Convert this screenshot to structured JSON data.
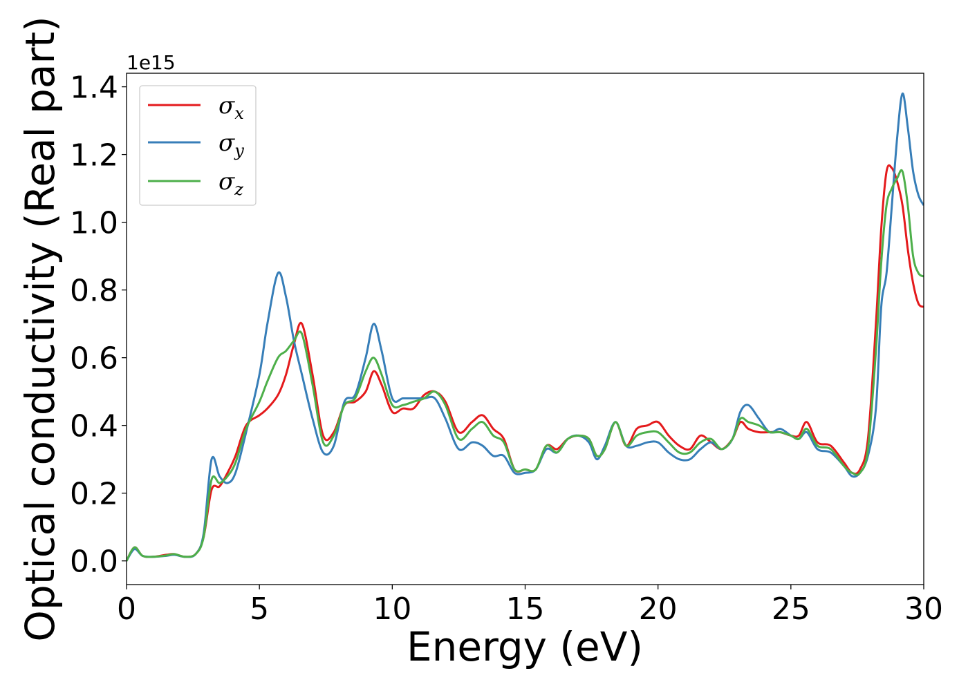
{
  "chart_data": {
    "type": "line",
    "title": "",
    "xlabel": "Energy (eV)",
    "ylabel": "Optical conductivity (Real part)",
    "y_offset_label": "1e15",
    "xlim": [
      0,
      30
    ],
    "ylim": [
      -0.07,
      1.44
    ],
    "x_ticks": [
      0,
      5,
      10,
      15,
      20,
      25,
      30
    ],
    "x_tick_labels": [
      "0",
      "5",
      "10",
      "15",
      "20",
      "25",
      "30"
    ],
    "y_ticks": [
      0.0,
      0.2,
      0.4,
      0.6,
      0.8,
      1.0,
      1.2,
      1.4
    ],
    "y_tick_labels": [
      "0.0",
      "0.2",
      "0.4",
      "0.6",
      "0.8",
      "1.0",
      "1.2",
      "1.4"
    ],
    "grid": false,
    "legend_position": "top-left",
    "x": [
      0,
      0.3,
      0.6,
      1.0,
      1.5,
      1.8,
      2.2,
      2.6,
      2.9,
      3.2,
      3.5,
      3.8,
      4.1,
      4.5,
      5.0,
      5.3,
      5.7,
      6.0,
      6.3,
      6.6,
      7.0,
      7.4,
      7.8,
      8.2,
      8.6,
      9.0,
      9.3,
      9.6,
      10.0,
      10.4,
      10.8,
      11.2,
      11.6,
      12.0,
      12.5,
      13.0,
      13.4,
      13.8,
      14.2,
      14.6,
      15.0,
      15.4,
      15.8,
      16.2,
      16.6,
      17.0,
      17.4,
      17.7,
      18.0,
      18.4,
      18.8,
      19.2,
      19.6,
      20.0,
      20.4,
      20.8,
      21.2,
      21.6,
      22.0,
      22.4,
      22.8,
      23.1,
      23.4,
      23.8,
      24.2,
      24.6,
      25.0,
      25.3,
      25.6,
      26.0,
      26.5,
      27.0,
      27.3,
      27.6,
      27.9,
      28.2,
      28.4,
      28.6,
      28.8,
      29.0,
      29.2,
      29.4,
      29.6,
      29.8,
      30.0
    ],
    "series": [
      {
        "name": "σx",
        "color": "#e41a1c",
        "values": [
          0.0,
          0.04,
          0.015,
          0.012,
          0.018,
          0.02,
          0.012,
          0.02,
          0.07,
          0.21,
          0.22,
          0.26,
          0.31,
          0.4,
          0.43,
          0.45,
          0.49,
          0.55,
          0.64,
          0.7,
          0.55,
          0.37,
          0.38,
          0.46,
          0.47,
          0.5,
          0.56,
          0.52,
          0.44,
          0.45,
          0.45,
          0.49,
          0.5,
          0.47,
          0.38,
          0.41,
          0.43,
          0.39,
          0.36,
          0.27,
          0.27,
          0.27,
          0.34,
          0.33,
          0.36,
          0.37,
          0.36,
          0.31,
          0.33,
          0.41,
          0.34,
          0.39,
          0.4,
          0.41,
          0.37,
          0.34,
          0.33,
          0.37,
          0.35,
          0.33,
          0.36,
          0.41,
          0.39,
          0.38,
          0.38,
          0.38,
          0.37,
          0.37,
          0.41,
          0.35,
          0.34,
          0.29,
          0.26,
          0.27,
          0.36,
          0.7,
          0.98,
          1.15,
          1.16,
          1.12,
          1.05,
          0.92,
          0.82,
          0.76,
          0.75
        ]
      },
      {
        "name": "σy",
        "color": "#377eb8",
        "values": [
          0.0,
          0.035,
          0.015,
          0.012,
          0.015,
          0.018,
          0.012,
          0.02,
          0.08,
          0.3,
          0.25,
          0.23,
          0.26,
          0.38,
          0.55,
          0.7,
          0.85,
          0.78,
          0.65,
          0.55,
          0.42,
          0.32,
          0.34,
          0.47,
          0.49,
          0.6,
          0.7,
          0.62,
          0.48,
          0.48,
          0.48,
          0.48,
          0.48,
          0.42,
          0.33,
          0.35,
          0.34,
          0.31,
          0.31,
          0.26,
          0.26,
          0.27,
          0.33,
          0.32,
          0.36,
          0.37,
          0.35,
          0.3,
          0.34,
          0.41,
          0.34,
          0.34,
          0.35,
          0.35,
          0.32,
          0.3,
          0.3,
          0.33,
          0.35,
          0.33,
          0.36,
          0.44,
          0.46,
          0.42,
          0.38,
          0.39,
          0.37,
          0.36,
          0.38,
          0.33,
          0.32,
          0.28,
          0.25,
          0.26,
          0.31,
          0.45,
          0.75,
          0.85,
          1.05,
          1.25,
          1.38,
          1.28,
          1.15,
          1.08,
          1.05
        ]
      },
      {
        "name": "σz",
        "color": "#4daf4a",
        "values": [
          0.0,
          0.04,
          0.015,
          0.012,
          0.016,
          0.02,
          0.012,
          0.02,
          0.07,
          0.24,
          0.23,
          0.25,
          0.29,
          0.39,
          0.47,
          0.53,
          0.6,
          0.62,
          0.65,
          0.67,
          0.52,
          0.35,
          0.37,
          0.46,
          0.48,
          0.56,
          0.6,
          0.55,
          0.46,
          0.46,
          0.47,
          0.48,
          0.5,
          0.46,
          0.36,
          0.39,
          0.41,
          0.37,
          0.35,
          0.27,
          0.27,
          0.27,
          0.34,
          0.32,
          0.36,
          0.37,
          0.36,
          0.31,
          0.33,
          0.41,
          0.34,
          0.37,
          0.38,
          0.38,
          0.35,
          0.32,
          0.32,
          0.35,
          0.36,
          0.33,
          0.36,
          0.42,
          0.41,
          0.4,
          0.38,
          0.38,
          0.37,
          0.36,
          0.39,
          0.34,
          0.33,
          0.28,
          0.26,
          0.26,
          0.33,
          0.62,
          0.88,
          1.05,
          1.1,
          1.13,
          1.15,
          1.05,
          0.9,
          0.85,
          0.84
        ]
      }
    ]
  },
  "legend": [
    {
      "symbol": "σ",
      "sub": "x"
    },
    {
      "symbol": "σ",
      "sub": "y"
    },
    {
      "symbol": "σ",
      "sub": "z"
    }
  ]
}
